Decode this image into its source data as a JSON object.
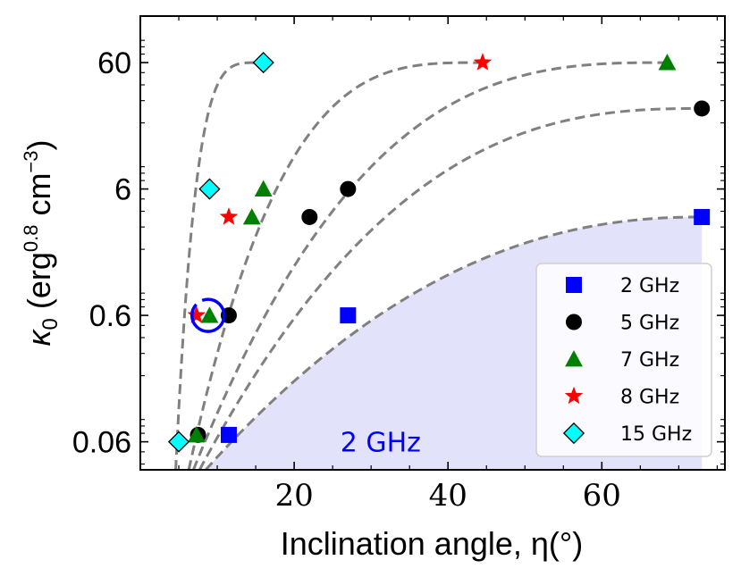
{
  "chart_data": {
    "type": "scatter",
    "xlabel": "Inclination angle, η(°)",
    "ylabel": "κ0 (erg0.8 cm−3)",
    "ylabel_parts": {
      "base": "κ",
      "base_sub": "0",
      "open": " (erg",
      "exp1": "0.8",
      "mid": " cm",
      "exp2": "−3",
      "close": ")"
    },
    "xscale": "linear",
    "yscale": "log",
    "xlim": [
      0,
      76
    ],
    "ylim": [
      0.036,
      140
    ],
    "xticks": [
      20,
      40,
      60
    ],
    "xtick_labels": [
      "20",
      "40",
      "60"
    ],
    "yticks": [
      0.06,
      0.6,
      6,
      60
    ],
    "ytick_labels": [
      "0.06",
      "0.6",
      "6",
      "60"
    ],
    "legend_position": "lower-right",
    "series": [
      {
        "name": "2 GHz",
        "marker": "square",
        "color": "#0000ff",
        "points": [
          [
            11.5,
            0.068
          ],
          [
            27,
            0.6
          ],
          [
            73,
            3.6
          ]
        ]
      },
      {
        "name": "5 GHz",
        "marker": "circle",
        "color": "#000000",
        "points": [
          [
            7.5,
            0.068
          ],
          [
            11.5,
            0.6
          ],
          [
            22,
            3.6
          ],
          [
            27,
            6
          ],
          [
            73,
            26
          ]
        ]
      },
      {
        "name": "7 GHz",
        "marker": "triangle",
        "color": "#008000",
        "points": [
          [
            7.3,
            0.068
          ],
          [
            9,
            0.6
          ],
          [
            14.5,
            3.6
          ],
          [
            16,
            6
          ],
          [
            68.5,
            60
          ]
        ]
      },
      {
        "name": "8 GHz",
        "marker": "star",
        "color": "#ff0000",
        "points": [
          [
            7.3,
            0.6
          ],
          [
            11.5,
            3.6
          ],
          [
            44.5,
            60
          ]
        ]
      },
      {
        "name": "15 GHz",
        "marker": "diamond",
        "color": "#00ffff",
        "points": [
          [
            5,
            0.06
          ],
          [
            9,
            6
          ],
          [
            16,
            60
          ]
        ]
      }
    ],
    "fit_curves": [
      {
        "series": "2 GHz",
        "from": [
          8.5,
          0.036
        ],
        "to": [
          73,
          3.6
        ],
        "exponent": 2.2,
        "shaded": true
      },
      {
        "series": "5 GHz",
        "from": [
          7.7,
          0.036
        ],
        "to": [
          73,
          26
        ],
        "exponent": 2.6,
        "shaded": false
      },
      {
        "series": "7 GHz",
        "from": [
          6.9,
          0.036
        ],
        "to": [
          68.5,
          60
        ],
        "exponent": 2.9,
        "shaded": false
      },
      {
        "series": "8 GHz",
        "from": [
          6.3,
          0.036
        ],
        "to": [
          44.5,
          60
        ],
        "exponent": 3.3,
        "shaded": false
      },
      {
        "series": "15 GHz",
        "from": [
          4.6,
          0.036
        ],
        "to": [
          16,
          60
        ],
        "exponent": 4.5,
        "shaded": false
      }
    ],
    "fit_style": {
      "color": "#808080",
      "dash": "dashed"
    },
    "shaded_region": {
      "color": "#e2e2fb",
      "label": "2 GHz",
      "label_color": "#0000ff",
      "label_at": [
        26,
        0.06
      ]
    },
    "highlight": {
      "at": [
        8.8,
        0.6
      ],
      "color": "#0000ff",
      "shape": "circle"
    },
    "grid": false
  }
}
